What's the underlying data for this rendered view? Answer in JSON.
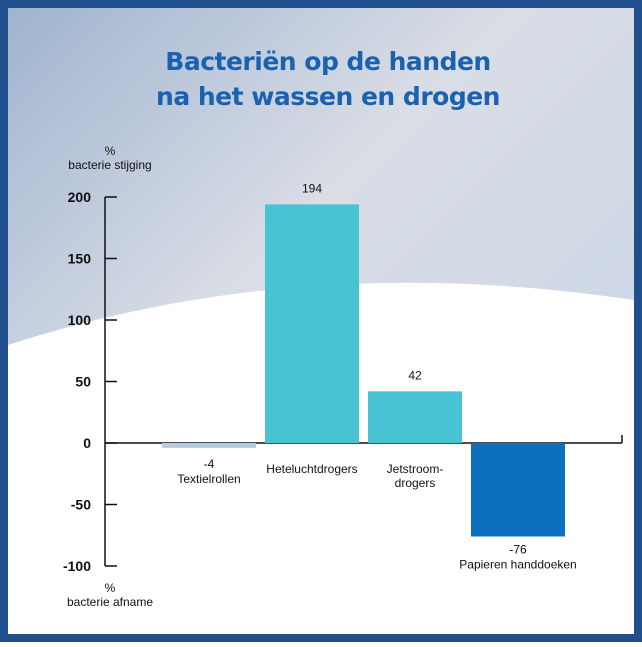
{
  "chart_data": {
    "type": "bar",
    "title": "Bacteriën op de handen\nna het wassen en drogen",
    "ylabel_top": "%\nbacterie stijging",
    "ylabel_bottom": "%\nbacterie afname",
    "categories": [
      "Textielrollen",
      "Heteluchtdrogers",
      "Jetstroom-\ndrogers",
      "Papieren handdoeken"
    ],
    "values": [
      -4,
      194,
      42,
      -76
    ],
    "colors": [
      "#b8cde0",
      "#47c3d3",
      "#47c3d3",
      "#0a6fbf"
    ],
    "ylim": [
      -100,
      200
    ],
    "yticks": [
      -100,
      -50,
      0,
      50,
      100,
      150,
      200
    ]
  }
}
